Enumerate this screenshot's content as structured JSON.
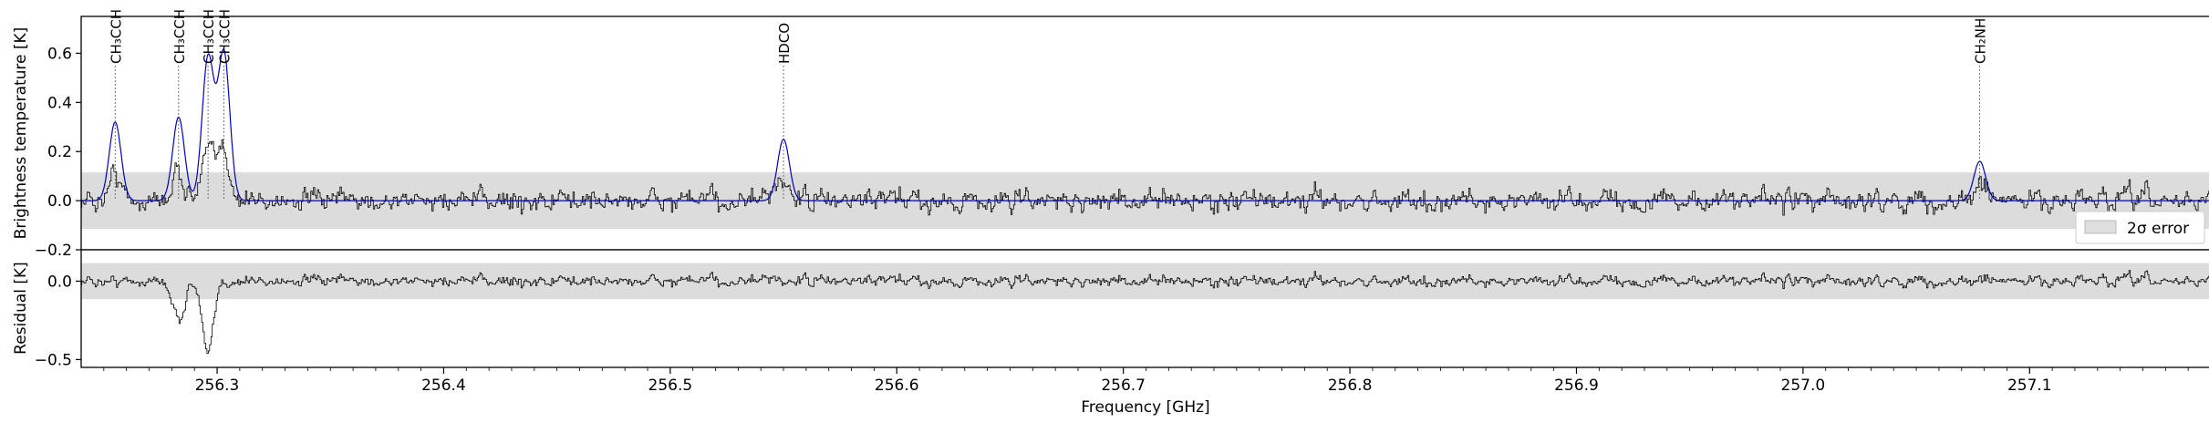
{
  "chart_data": {
    "type": "line",
    "shared_x": {
      "label": "Frequency [GHz]",
      "xlim": [
        256.24,
        257.18
      ],
      "ticks": [
        "256.3",
        "256.4",
        "256.5",
        "256.6",
        "256.7",
        "256.8",
        "256.9",
        "257.0",
        "257.1"
      ]
    },
    "panels": [
      {
        "name": "spectrum",
        "ylabel": "Brightness temperature [K]",
        "ylim": [
          -0.2,
          0.75
        ],
        "yticks": [
          "−0.2",
          "0.0",
          "0.2",
          "0.4",
          "0.6"
        ],
        "error_band": {
          "half_width": 0.115
        },
        "legend": {
          "label": "2σ error",
          "position": "lower-right"
        },
        "line_labels": [
          {
            "text": "CH₃CCH",
            "x": 256.255
          },
          {
            "text": "CH₃CCH",
            "x": 256.283
          },
          {
            "text": "CH₃CCH",
            "x": 256.296
          },
          {
            "text": "CH₃CCH",
            "x": 256.303
          },
          {
            "text": "HDCO",
            "x": 256.55
          },
          {
            "text": "CH₂NH",
            "x": 257.078
          }
        ],
        "series": [
          {
            "style": "data-step",
            "color": "#000000",
            "noise_rms": 0.055,
            "description_values": {
              "min": -0.17,
              "max": 0.21
            }
          },
          {
            "style": "model",
            "color": "#0000cc",
            "peaks": [
              {
                "x": 256.255,
                "y": 0.32
              },
              {
                "x": 256.283,
                "y": 0.34
              },
              {
                "x": 256.296,
                "y": 0.58
              },
              {
                "x": 256.303,
                "y": 0.6
              },
              {
                "x": 256.55,
                "y": 0.25
              },
              {
                "x": 257.078,
                "y": 0.16
              }
            ]
          }
        ]
      },
      {
        "name": "residual",
        "ylabel": "Residual [K]",
        "ylim": [
          -0.55,
          0.2
        ],
        "yticks": [
          "−0.5",
          "0.0"
        ],
        "error_band": {
          "half_width": 0.115
        },
        "series": [
          {
            "style": "residual-step",
            "color": "#000000",
            "noise_rms": 0.04,
            "dips": [
              {
                "x": 256.296,
                "y": -0.47
              },
              {
                "x": 256.283,
                "y": -0.25
              }
            ]
          }
        ]
      }
    ]
  }
}
